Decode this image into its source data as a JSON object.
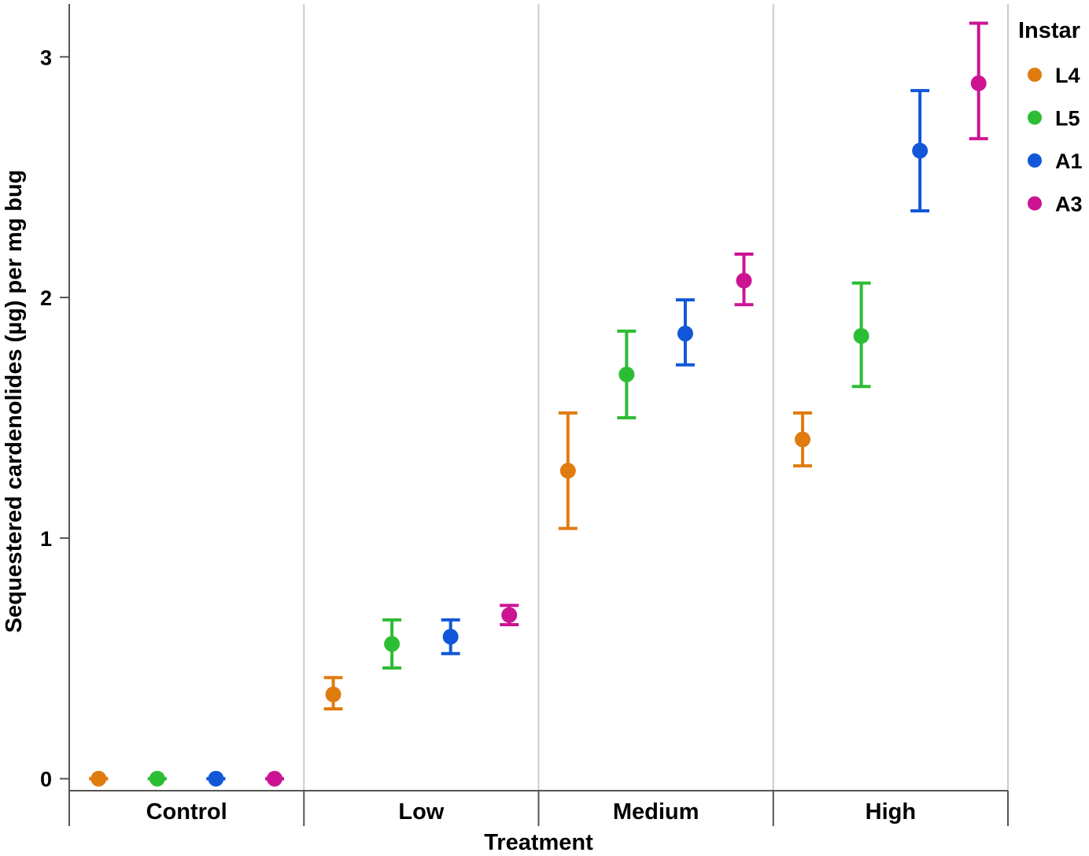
{
  "chart_data": {
    "type": "scatter",
    "subtype": "dot-with-error-bars",
    "title": "",
    "xlabel": "Treatment",
    "ylabel": "Sequestered cardenolides (µg) per mg bug",
    "categories": [
      "Control",
      "Low",
      "Medium",
      "High"
    ],
    "ylim": [
      -0.05,
      3.22
    ],
    "yticks": [
      0,
      1,
      2,
      3
    ],
    "grid": "vertical separators between categories",
    "legend": {
      "title": "Instar",
      "placement": "top-right"
    },
    "series": [
      {
        "name": "L4",
        "color": "#e07b10",
        "values": [
          0.0,
          0.35,
          1.28,
          1.41
        ],
        "lower": [
          0.0,
          0.29,
          1.04,
          1.3
        ],
        "upper": [
          0.0,
          0.42,
          1.52,
          1.52
        ]
      },
      {
        "name": "L5",
        "color": "#2dbd35",
        "values": [
          0.0,
          0.56,
          1.68,
          1.84
        ],
        "lower": [
          0.0,
          0.46,
          1.5,
          1.63
        ],
        "upper": [
          0.0,
          0.66,
          1.86,
          2.06
        ]
      },
      {
        "name": "A1",
        "color": "#1257d8",
        "values": [
          0.0,
          0.59,
          1.85,
          2.61
        ],
        "lower": [
          0.0,
          0.52,
          1.72,
          2.36
        ],
        "upper": [
          0.0,
          0.66,
          1.99,
          2.86
        ]
      },
      {
        "name": "A3",
        "color": "#cc1493",
        "values": [
          0.0,
          0.68,
          2.07,
          2.89
        ],
        "lower": [
          0.0,
          0.64,
          1.97,
          2.66
        ],
        "upper": [
          0.0,
          0.72,
          2.18,
          3.14
        ]
      }
    ]
  }
}
